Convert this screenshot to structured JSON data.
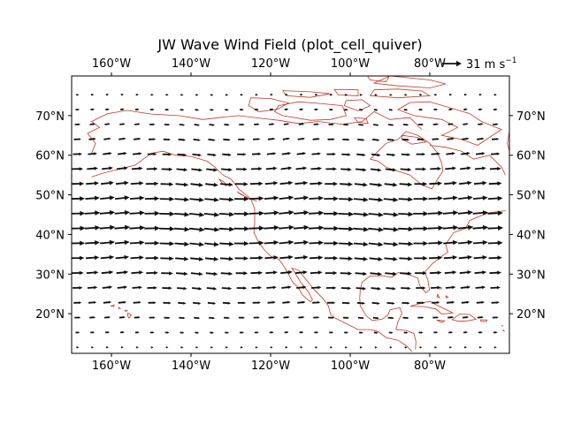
{
  "chart_data": {
    "type": "quiver",
    "title": "JW Wave Wind Field (plot_cell_quiver)",
    "xlabel": "",
    "ylabel": "",
    "xlim": [
      -170,
      -60
    ],
    "ylim": [
      10,
      80
    ],
    "x_ticks": [
      -160,
      -140,
      -120,
      -100,
      -80
    ],
    "x_tick_labels": [
      "160°W",
      "140°W",
      "120°W",
      "100°W",
      "80°W"
    ],
    "y_ticks": [
      20,
      30,
      40,
      50,
      60,
      70
    ],
    "y_tick_labels": [
      "20°N",
      "30°N",
      "40°N",
      "50°N",
      "60°N",
      "70°N"
    ],
    "ticks_on": [
      "top",
      "bottom",
      "left",
      "right"
    ],
    "grid": false,
    "quiver_key": {
      "value": 31,
      "label": "31 m s",
      "superscript": "−1",
      "placement": "top-right, above axes"
    },
    "vector_grid": {
      "lon_start": -168.5,
      "lon_end": -61.5,
      "lon_step": 3.75,
      "lat_start": 11.5,
      "lat_end": 78.5,
      "lat_step": 3.75
    },
    "wind_profile": {
      "direction": "eastward",
      "u_by_lat": [
        {
          "lat": 12,
          "u": 4
        },
        {
          "lat": 18,
          "u": 9
        },
        {
          "lat": 24,
          "u": 14
        },
        {
          "lat": 30,
          "u": 19
        },
        {
          "lat": 36,
          "u": 23
        },
        {
          "lat": 42,
          "u": 25
        },
        {
          "lat": 48,
          "u": 24
        },
        {
          "lat": 54,
          "u": 20
        },
        {
          "lat": 60,
          "u": 15
        },
        {
          "lat": 66,
          "u": 10
        },
        {
          "lat": 72,
          "u": 6
        },
        {
          "lat": 78,
          "u": 3
        }
      ],
      "meridional_wave_amplitude": 2.5
    },
    "coastline_color": "#c0392b",
    "arrow_color": "#111111"
  }
}
